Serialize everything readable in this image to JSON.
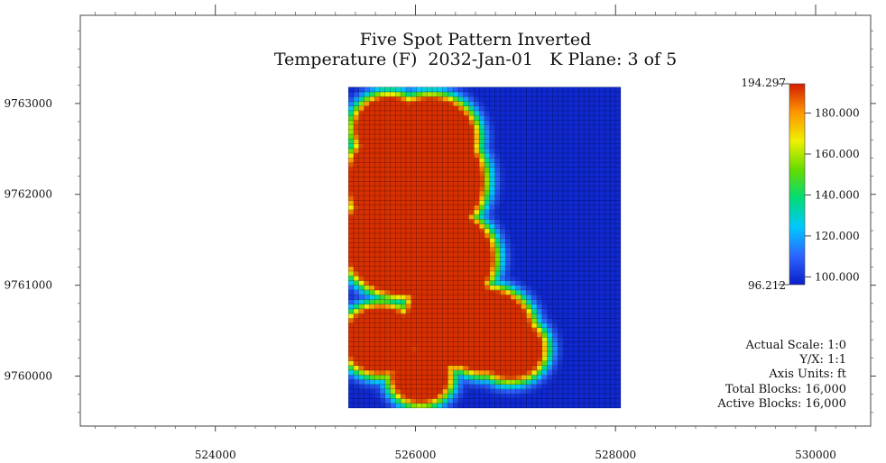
{
  "chart_data": {
    "type": "heatmap",
    "title": "Five Spot Pattern Inverted",
    "subtitle": "Temperature (F)  2032-Jan-01   K Plane: 3 of 5",
    "xlabel": "",
    "ylabel": "",
    "x_ticks": [
      "524000",
      "526000",
      "528000",
      "530000"
    ],
    "y_ticks": [
      "9763000",
      "9762000",
      "9761000",
      "9760000"
    ],
    "x_tick_values": [
      524000,
      526000,
      528000,
      530000
    ],
    "y_tick_values": [
      9763000,
      9762000,
      9761000,
      9760000
    ],
    "xlim": [
      522650,
      530550
    ],
    "ylim": [
      9759450,
      9763970
    ],
    "grid_extent": {
      "x": [
        525330,
        528050
      ],
      "y": [
        9759650,
        9763180
      ]
    },
    "grid_cells": {
      "nx": 52,
      "ny": 68
    },
    "colorbar": {
      "min": 96.212,
      "max": 194.297,
      "min_label": "96.212",
      "max_label": "194.297",
      "tick_values": [
        180,
        160,
        140,
        120,
        100
      ],
      "tick_labels": [
        "180.000",
        "160.000",
        "140.000",
        "120.000",
        "100.000"
      ],
      "colors": [
        "#0a1ec8",
        "#2d64ff",
        "#00c8ff",
        "#00dc78",
        "#64dc00",
        "#f0f000",
        "#ff9600",
        "#d21e00"
      ]
    },
    "hot_zones": [
      {
        "x": 525740,
        "y": 9762730,
        "r": 320
      },
      {
        "x": 526150,
        "y": 9762620,
        "r": 420
      },
      {
        "x": 526000,
        "y": 9762150,
        "r": 650
      },
      {
        "x": 525880,
        "y": 9761500,
        "r": 580
      },
      {
        "x": 526250,
        "y": 9761300,
        "r": 500
      },
      {
        "x": 526400,
        "y": 9760600,
        "r": 470
      },
      {
        "x": 526700,
        "y": 9760500,
        "r": 430
      },
      {
        "x": 525650,
        "y": 9760400,
        "r": 340
      },
      {
        "x": 526050,
        "y": 9760000,
        "r": 260
      },
      {
        "x": 526950,
        "y": 9760300,
        "r": 300
      }
    ],
    "annotations": [
      "Actual Scale: 1:0",
      "Y/X: 1:1",
      "Axis Units: ft",
      "Total Blocks: 16,000",
      "Active Blocks: 16,000"
    ]
  }
}
